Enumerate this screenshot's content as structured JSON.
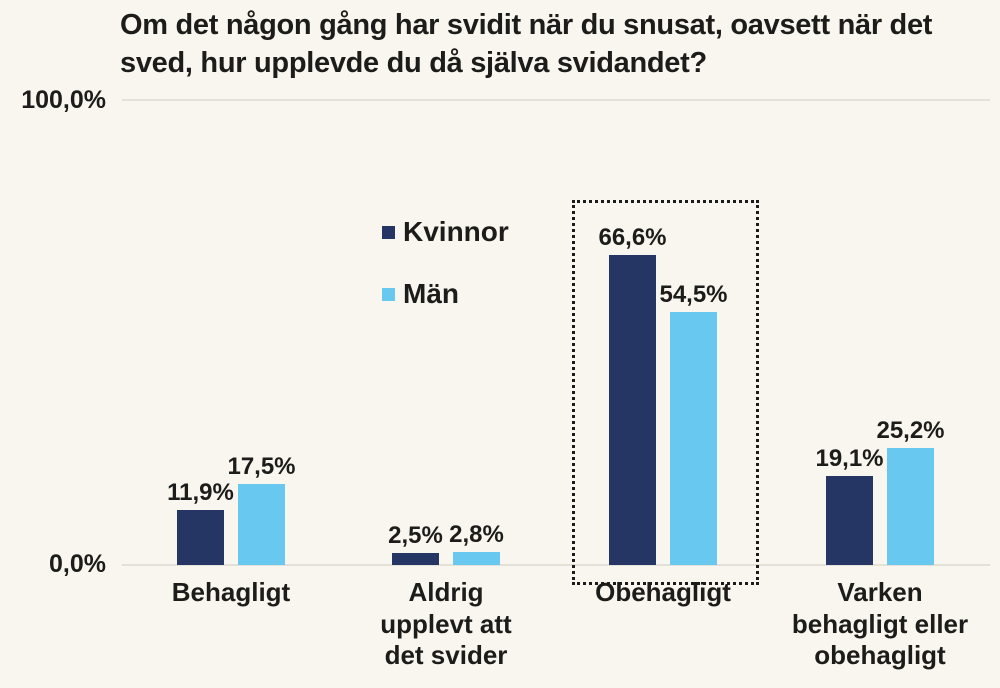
{
  "title": "Om det någon gång har svidit när du snusat, oavsett när det sved, hur upplevde du då själva svidandet?",
  "colors": {
    "kvinnor": "#253664",
    "man": "#69C8F0",
    "background": "#F8F6EE",
    "gridline": "#E3E1D8",
    "text": "#1C1C1A",
    "highlight_border": "#1B1B1B"
  },
  "y_axis": {
    "top_label": "100,0%",
    "bottom_label": "0,0%"
  },
  "legend": {
    "items": [
      {
        "label": "Kvinnor",
        "series": "kvinnor"
      },
      {
        "label": "Män",
        "series": "man"
      }
    ]
  },
  "chart_data": {
    "type": "bar",
    "title": "Om det någon gång har svidit när du snusat, oavsett när det sved, hur upplevde du då själva svidandet?",
    "categories": [
      "Behagligt",
      "Aldrig upplevt att det svider",
      "Obehagligt",
      "Varken behagligt eller obehagligt"
    ],
    "series": [
      {
        "name": "Kvinnor",
        "color": "#253664",
        "values": [
          11.9,
          2.5,
          66.6,
          19.1
        ],
        "value_labels": [
          "11,9%",
          "2,5%",
          "66,6%",
          "19,1%"
        ]
      },
      {
        "name": "Män",
        "color": "#69C8F0",
        "values": [
          17.5,
          2.8,
          54.5,
          25.2
        ],
        "value_labels": [
          "17,5%",
          "2,8%",
          "54,5%",
          "25,2%"
        ]
      }
    ],
    "ylim": [
      0,
      100
    ],
    "ylabel": "",
    "xlabel": "",
    "grid": "horizontal lines at 0% and 100% only",
    "legend_position": "upper middle-left of plot area",
    "highlight": {
      "category": "Obehagligt",
      "style": "dotted rectangle around bar group"
    }
  }
}
